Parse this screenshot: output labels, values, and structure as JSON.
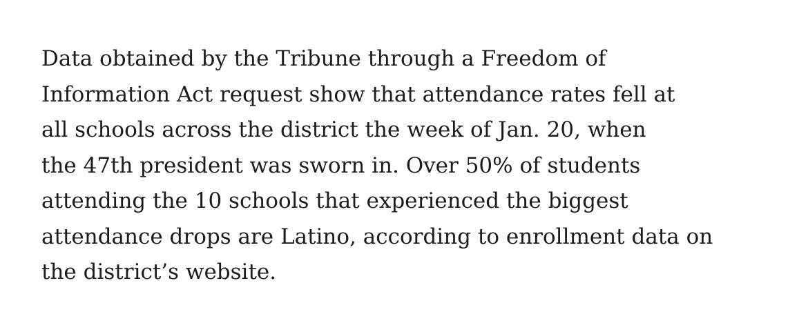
{
  "article": {
    "lines": [
      "Data obtained by the Tribune through a Freedom of",
      "Information Act request show that attendance rates fell at",
      "all schools across the district the week of Jan. 20, when",
      "the 47th president was sworn in. Over 50% of students",
      "attending the 10 schools that experienced the biggest",
      "attendance drops are Latino, according to enrollment data on",
      "the district’s website."
    ]
  }
}
